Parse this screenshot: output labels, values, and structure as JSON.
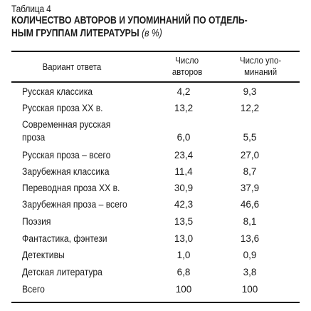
{
  "table": {
    "label": "Таблица 4",
    "title_line1": "КОЛИЧЕСТВО АВТОРОВ И УПОМИНАНИЙ ПО ОТДЕЛЬ-",
    "title_line2": "НЫМ ГРУППАМ ЛИТЕРАТУРЫ",
    "title_unit": "(в %)",
    "headers": {
      "variant": "Вариант ответа",
      "authors_line1": "Число",
      "authors_line2": "авторов",
      "mentions_line1": "Число упо-",
      "mentions_line2": "минаний"
    },
    "rows": [
      {
        "label": "Русская классика",
        "authors": "4,2",
        "mentions": "9,3"
      },
      {
        "label": "Русская проза XX в.",
        "authors": "13,2",
        "mentions": "12,2"
      },
      {
        "label_line1": "Современная русская",
        "label_line2": "проза",
        "authors": "6,0",
        "mentions": "5,5"
      },
      {
        "label": "Русская проза – всего",
        "authors": "23,4",
        "mentions": "27,0"
      },
      {
        "label": "Зарубежная классика",
        "authors": "11,4",
        "mentions": "8,7"
      },
      {
        "label": "Переводная проза XX в.",
        "authors": "30,9",
        "mentions": "37,9"
      },
      {
        "label": "Зарубежная проза – всего",
        "authors": "42,3",
        "mentions": "46,6"
      },
      {
        "label": "Поэзия",
        "authors": "13,5",
        "mentions": "8,1"
      },
      {
        "label": "Фантастика, фэнтези",
        "authors": "13,0",
        "mentions": "13,6"
      },
      {
        "label": "Детективы",
        "authors": "1,0",
        "mentions": "0,9"
      },
      {
        "label": "Детская литература",
        "authors": "6,8",
        "mentions": "3,8"
      },
      {
        "label": "Всего",
        "authors": "100",
        "mentions": "100"
      }
    ]
  }
}
